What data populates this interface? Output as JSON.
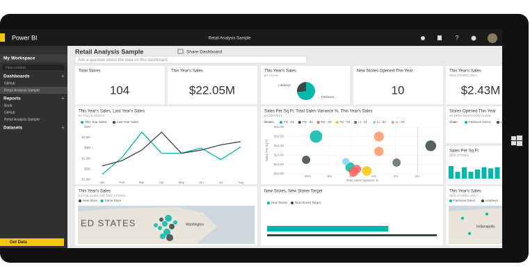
{
  "app": {
    "brand": "Power BI",
    "title": "Retail Analysis Sample"
  },
  "sidebar": {
    "workspace": "My Workspace",
    "filter_placeholder": "Filter content",
    "sections": [
      {
        "title": "Dashboards",
        "items": [
          "GitHub",
          "Retail Analysis Sample"
        ]
      },
      {
        "title": "Reports",
        "items": [
          "Book",
          "GitHub",
          "Retail Analysis Sample"
        ]
      },
      {
        "title": "Datasets"
      }
    ],
    "get_data": "Get Data"
  },
  "dashboard": {
    "title": "Retail Analysis Sample",
    "share": "Share Dashboard",
    "qa_placeholder": "Ask a question about the data on this dashboard"
  },
  "tiles": [
    {
      "title": "Total Stores",
      "value": 104
    },
    {
      "title": "This Year's Sales",
      "value": 22050000,
      "value_label": "$22.05M"
    },
    {
      "title": "This Year's Sales",
      "subtitle": "BY CHAIN",
      "chart_data": {
        "type": "pie",
        "categories": [
          "Lindseys",
          "Fashions..."
        ],
        "values": [
          27,
          73
        ],
        "colors": [
          "#374649",
          "#01b8aa"
        ]
      }
    },
    {
      "title": "New Stores Opened This Year",
      "value": 10
    },
    {
      "title": "This Year's Sales",
      "subtitle": "NEW STORES ONLY",
      "value": 2430000,
      "value_label": "$2.43M"
    },
    {
      "title": "This Year's Sales, Last Year's Sales",
      "subtitle": "BY FISCAL MONTH",
      "chart_data": {
        "type": "line",
        "categories": [
          "Jan",
          "Feb",
          "Mar",
          "Apr",
          "May",
          "Jun",
          "Jul",
          "Aug"
        ],
        "series": [
          {
            "name": "This Year Sales",
            "color": "#01b8aa",
            "values": [
              1750000,
              2550000,
              3750000,
              2750000,
              2750000,
              3000000,
              2450000,
              3050000
            ]
          },
          {
            "name": "Last Year Sales",
            "color": "#374649",
            "values": [
              2150000,
              2400000,
              2900000,
              3750000,
              2750000,
              2900000,
              3150000,
              3300000
            ]
          }
        ],
        "ylim": [
          1250000,
          4250000
        ],
        "yticks": [
          {
            "value": 1500000,
            "label": "$1.5M"
          },
          {
            "value": 2000000,
            "label": "$2M"
          },
          {
            "value": 2500000,
            "label": "$2.5M"
          },
          {
            "value": 3000000,
            "label": "$3M"
          },
          {
            "value": 3500000,
            "label": "$3.5M"
          },
          {
            "value": 4000000,
            "label": "$4M"
          }
        ]
      }
    },
    {
      "title": "Sales Per Sq Ft, Total Sales Variance %, This Year's Sales",
      "subtitle": "BY DISTRICT",
      "chart_data": {
        "type": "scatter",
        "legend_title": "District",
        "x_label": "Total Sales Variance %",
        "y_label": "Sales Per Sq Ft",
        "series": [
          {
            "name": "FD - 01",
            "color": "#01b8aa",
            "x": [
              -9.2,
              -6.1
            ],
            "values": [
              14.5,
              12.85
            ],
            "sizes": [
              3.2,
              1.9
            ]
          },
          {
            "name": "FD - 02",
            "color": "#374649",
            "x": [
              -10.1,
              1.2
            ],
            "values": [
              13.25,
              14.0
            ],
            "sizes": [
              1.4,
              2.4
            ]
          },
          {
            "name": "FD - 03",
            "color": "#fd625e",
            "x": [
              -5.8,
              -5.5
            ],
            "values": [
              12.6,
              12.75
            ],
            "sizes": [
              1.8,
              1.5
            ]
          },
          {
            "name": "FD - 04",
            "color": "#f2c80f",
            "x": [
              -4.6
            ],
            "values": [
              12.65
            ],
            "sizes": [
              1.9
            ]
          },
          {
            "name": "LI - 01",
            "color": "#5f6b6d",
            "x": [
              -1.9
            ],
            "values": [
              13.1
            ],
            "sizes": [
              1.4
            ]
          },
          {
            "name": "LI - 02",
            "color": "#8ad4eb",
            "x": [
              -6.5
            ],
            "values": [
              13.15
            ],
            "sizes": [
              1.1
            ]
          },
          {
            "name": "LI - 03",
            "color": "#fe9666",
            "x": [
              -3.5,
              -3.5
            ],
            "values": [
              14.5,
              13.7
            ],
            "sizes": [
              2.0,
              1.8
            ]
          }
        ],
        "xlim": [
          -12,
          2
        ],
        "xticks": [
          {
            "value": -10,
            "label": "-10%"
          },
          {
            "value": -8,
            "label": "-8%"
          },
          {
            "value": -6,
            "label": "-6%"
          },
          {
            "value": -4,
            "label": "-4%"
          },
          {
            "value": -2,
            "label": "-2%"
          },
          {
            "value": 0,
            "label": "0%"
          }
        ],
        "ylim": [
          12.5,
          15
        ],
        "yticks": [
          {
            "value": 12.5,
            "label": "$12.50"
          },
          {
            "value": 13,
            "label": "$13.00"
          },
          {
            "value": 13.5,
            "label": "$13.50"
          },
          {
            "value": 14,
            "label": "$14.00"
          },
          {
            "value": 14.5,
            "label": "$14.50"
          },
          {
            "value": 15,
            "label": "$15.00"
          }
        ]
      }
    },
    {
      "title": "Stores Opened This Year",
      "subtitle": "BY OPEN MONTH AND CHAIN",
      "chart_data": {
        "type": "legend",
        "legend_title": "Chain",
        "series": [
          {
            "name": "Fashions Direct",
            "color": "#01b8aa"
          },
          {
            "name": "Lindseys",
            "color": "#374649"
          }
        ]
      }
    },
    {
      "title": "Sales Per Sq Ft",
      "subtitle": "NEW STORES",
      "chart_data": {
        "type": "column",
        "color": "#01b8aa",
        "values": [
          11,
          6,
          10,
          6,
          8,
          10,
          9,
          10
        ]
      }
    },
    {
      "title": "This Year's Sales",
      "subtitle": "ESTABLISHED AND NEW STORES",
      "map": {
        "legend": [
          {
            "name": "New Store",
            "color": "#374649"
          },
          {
            "name": "Same Store",
            "color": "#01b8aa"
          }
        ],
        "labels": [
          "ED STATES",
          "Washington"
        ]
      }
    },
    {
      "title": "New Stores, New Stores Target",
      "chart_data": {
        "type": "hbar",
        "series": [
          {
            "name": "New Stores",
            "color": "#01b8aa",
            "values": [
              10
            ]
          },
          {
            "name": "New Stores Target",
            "color": "#374649",
            "values": [
              14
            ]
          }
        ]
      }
    },
    {
      "title": "This Year's Sales",
      "subtitle": "NEW STORES ONLY",
      "map": {
        "legend": [
          {
            "name": "Fashions Direct",
            "color": "#01b8aa"
          },
          {
            "name": "Lindseys",
            "color": "#374649"
          }
        ],
        "labels": [
          "Indianapolis"
        ]
      }
    }
  ]
}
